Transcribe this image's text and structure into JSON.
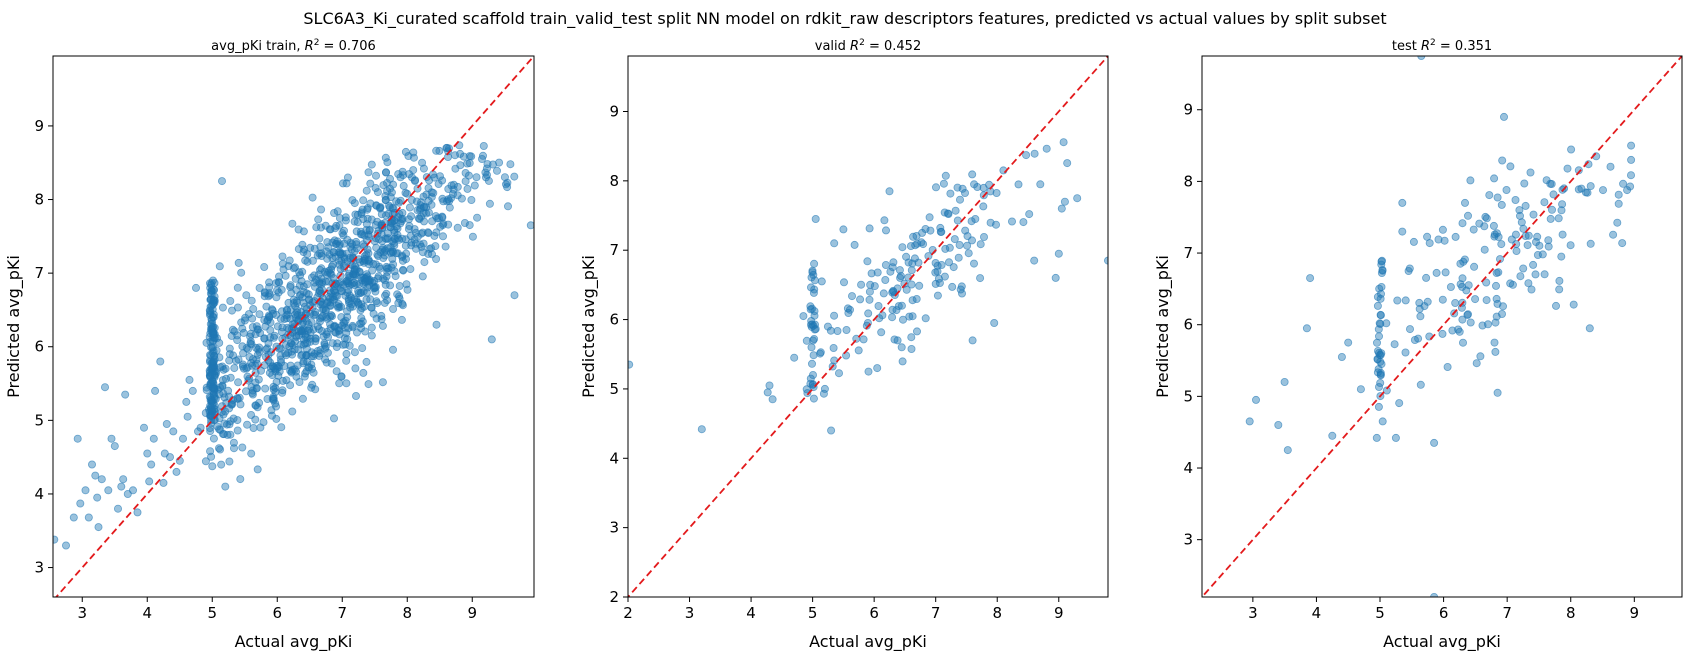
{
  "figure": {
    "suptitle": "SLC6A3_Ki_curated  scaffold train_valid_test split NN model on rdkit_raw descriptors features, predicted vs actual values by split subset"
  },
  "chart_data": [
    {
      "type": "scatter",
      "title_prefix": "avg_pKi train, ",
      "r2_value": "0.706",
      "xlabel": "Actual avg_pKi",
      "ylabel": "Predicted avg_pKi",
      "xlim": [
        2.55,
        9.95
      ],
      "ylim": [
        2.6,
        9.95
      ],
      "xticks": [
        "3",
        "4",
        "5",
        "6",
        "7",
        "8",
        "9"
      ],
      "yticks": [
        "3",
        "4",
        "5",
        "6",
        "7",
        "8",
        "9"
      ],
      "diagonal_color": "#e31a1c",
      "marker_color": "#1f77b4",
      "n_points": 1300,
      "points": [
        [
          2.57,
          3.38
        ],
        [
          2.75,
          3.3
        ],
        [
          2.87,
          3.68
        ],
        [
          2.93,
          4.75
        ],
        [
          2.97,
          3.87
        ],
        [
          3.05,
          4.05
        ],
        [
          3.1,
          3.68
        ],
        [
          3.15,
          4.4
        ],
        [
          3.2,
          4.25
        ],
        [
          3.23,
          3.95
        ],
        [
          3.25,
          3.55
        ],
        [
          3.3,
          4.2
        ],
        [
          3.35,
          5.45
        ],
        [
          3.4,
          4.05
        ],
        [
          3.45,
          4.75
        ],
        [
          3.5,
          4.65
        ],
        [
          3.55,
          3.8
        ],
        [
          3.6,
          4.1
        ],
        [
          3.63,
          4.2
        ],
        [
          3.66,
          5.35
        ],
        [
          3.7,
          4.0
        ],
        [
          3.78,
          4.05
        ],
        [
          3.85,
          3.75
        ],
        [
          3.95,
          4.9
        ],
        [
          4.0,
          4.55
        ],
        [
          4.03,
          4.17
        ],
        [
          4.06,
          4.4
        ],
        [
          4.1,
          4.75
        ],
        [
          4.12,
          5.4
        ],
        [
          4.2,
          5.8
        ],
        [
          4.25,
          4.15
        ],
        [
          4.27,
          4.55
        ],
        [
          4.3,
          4.95
        ],
        [
          4.35,
          4.5
        ],
        [
          4.4,
          4.85
        ],
        [
          4.45,
          4.3
        ],
        [
          4.5,
          4.45
        ],
        [
          4.55,
          4.75
        ],
        [
          4.6,
          5.25
        ],
        [
          4.62,
          5.05
        ],
        [
          4.65,
          5.55
        ],
        [
          4.7,
          5.4
        ],
        [
          4.75,
          6.8
        ],
        [
          4.78,
          4.85
        ],
        [
          4.82,
          4.9
        ],
        [
          4.9,
          5.1
        ],
        [
          4.95,
          5.15
        ],
        [
          5.15,
          8.25
        ],
        [
          5.2,
          4.1
        ],
        [
          8.55,
          7.5
        ],
        [
          9.9,
          7.65
        ],
        [
          9.65,
          6.7
        ],
        [
          9.3,
          6.1
        ],
        [
          9.15,
          8.55
        ],
        [
          8.45,
          6.3
        ]
      ],
      "dense": {
        "x_mean": 6.9,
        "x_sd": 1.1,
        "y_intercept": 1.4,
        "y_slope": 0.78,
        "y_noise": 0.55,
        "cluster_x": 5.0,
        "cluster_n": 140
      }
    },
    {
      "type": "scatter",
      "title_prefix": "valid ",
      "r2_value": "0.452",
      "xlabel": "Actual avg_pKi",
      "ylabel": "Predicted avg_pKi",
      "xlim": [
        2.0,
        9.8
      ],
      "ylim": [
        2.0,
        9.8
      ],
      "xticks": [
        "2",
        "3",
        "4",
        "5",
        "6",
        "7",
        "8",
        "9"
      ],
      "yticks": [
        "2",
        "3",
        "4",
        "5",
        "6",
        "7",
        "8",
        "9"
      ],
      "diagonal_color": "#e31a1c",
      "marker_color": "#1f77b4",
      "n_points": 230,
      "points": [
        [
          2.02,
          5.35
        ],
        [
          3.2,
          4.42
        ],
        [
          4.27,
          4.95
        ],
        [
          4.3,
          5.05
        ],
        [
          4.35,
          4.85
        ],
        [
          4.7,
          5.45
        ],
        [
          4.85,
          6.05
        ],
        [
          5.05,
          7.45
        ],
        [
          5.15,
          6.55
        ],
        [
          5.2,
          5.0
        ],
        [
          5.3,
          4.4
        ],
        [
          5.35,
          7.1
        ],
        [
          5.5,
          7.3
        ],
        [
          5.55,
          5.85
        ],
        [
          9.0,
          6.95
        ],
        [
          9.05,
          7.6
        ],
        [
          9.1,
          7.7
        ],
        [
          9.3,
          7.75
        ],
        [
          9.8,
          6.85
        ],
        [
          8.95,
          6.6
        ],
        [
          8.7,
          7.95
        ],
        [
          8.6,
          6.85
        ],
        [
          8.1,
          8.15
        ],
        [
          7.95,
          5.95
        ],
        [
          7.6,
          5.7
        ],
        [
          6.25,
          7.85
        ],
        [
          6.05,
          5.3
        ]
      ],
      "dense": {
        "x_mean": 6.7,
        "x_sd": 1.0,
        "y_intercept": 2.6,
        "y_slope": 0.62,
        "y_noise": 0.5,
        "cluster_x": 5.0,
        "cluster_n": 30
      }
    },
    {
      "type": "scatter",
      "title_prefix": "test ",
      "r2_value": "0.351",
      "xlabel": "Actual avg_pKi",
      "ylabel": "Predicted avg_pKi",
      "xlim": [
        2.2,
        9.75
      ],
      "ylim": [
        2.2,
        9.75
      ],
      "xticks": [
        "3",
        "4",
        "5",
        "6",
        "7",
        "8",
        "9"
      ],
      "yticks": [
        "3",
        "4",
        "5",
        "6",
        "7",
        "8",
        "9"
      ],
      "diagonal_color": "#e31a1c",
      "marker_color": "#1f77b4",
      "n_points": 230,
      "points": [
        [
          2.95,
          4.65
        ],
        [
          3.05,
          4.95
        ],
        [
          3.4,
          4.6
        ],
        [
          3.5,
          5.2
        ],
        [
          3.55,
          4.25
        ],
        [
          3.85,
          5.95
        ],
        [
          3.9,
          6.65
        ],
        [
          4.25,
          4.45
        ],
        [
          4.4,
          5.55
        ],
        [
          4.5,
          5.75
        ],
        [
          4.7,
          5.1
        ],
        [
          4.95,
          4.42
        ],
        [
          5.25,
          4.42
        ],
        [
          5.45,
          6.75
        ],
        [
          5.35,
          7.7
        ],
        [
          5.35,
          7.3
        ],
        [
          5.65,
          9.75
        ],
        [
          5.85,
          4.35
        ],
        [
          5.85,
          2.2
        ],
        [
          6.95,
          8.9
        ],
        [
          6.8,
          5.75
        ],
        [
          6.85,
          5.05
        ],
        [
          8.3,
          5.95
        ],
        [
          8.4,
          8.35
        ],
        [
          8.95,
          8.5
        ],
        [
          8.95,
          8.3
        ]
      ],
      "dense": {
        "x_mean": 6.8,
        "x_sd": 1.05,
        "y_intercept": 2.7,
        "y_slope": 0.62,
        "y_noise": 0.6,
        "cluster_x": 5.0,
        "cluster_n": 35
      }
    }
  ]
}
